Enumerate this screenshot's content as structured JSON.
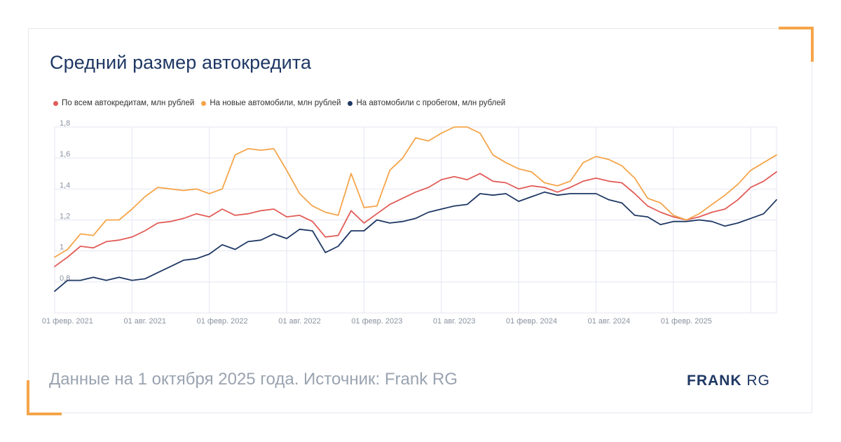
{
  "title": "Средний размер автокредита",
  "footer_note": "Данные на 1 октября 2025 года. Источник: Frank RG",
  "logo": {
    "bold": "FRANK",
    "light": "RG"
  },
  "colors": {
    "all": "#e25c58",
    "new": "#f5a54a",
    "used": "#1f3864",
    "grid": "#e4e6f2",
    "axis_text": "#8a93a0"
  },
  "chart_data": {
    "type": "line",
    "title": "Средний размер автокредита",
    "grid": true,
    "legend_position": "top-left",
    "ylim": [
      0.6,
      1.8
    ],
    "y_ticks": [
      "0,8",
      "1",
      "1,2",
      "1,4",
      "1,6",
      "1,8"
    ],
    "y_tick_values": [
      0.8,
      1.0,
      1.2,
      1.4,
      1.6,
      1.8
    ],
    "x": [
      "2021-01",
      "2021-02",
      "2021-03",
      "2021-04",
      "2021-05",
      "2021-06",
      "2021-07",
      "2021-08",
      "2021-09",
      "2021-10",
      "2021-11",
      "2021-12",
      "2022-01",
      "2022-02",
      "2022-03",
      "2022-04",
      "2022-05",
      "2022-06",
      "2022-07",
      "2022-08",
      "2022-09",
      "2022-10",
      "2022-11",
      "2022-12",
      "2023-01",
      "2023-02",
      "2023-03",
      "2023-04",
      "2023-05",
      "2023-06",
      "2023-07",
      "2023-08",
      "2023-09",
      "2023-10",
      "2023-11",
      "2023-12",
      "2024-01",
      "2024-02",
      "2024-03",
      "2024-04",
      "2024-05",
      "2024-06",
      "2024-07",
      "2024-08",
      "2024-09",
      "2024-10",
      "2024-11",
      "2024-12",
      "2025-01",
      "2025-02",
      "2025-03",
      "2025-04",
      "2025-05",
      "2025-06",
      "2025-07",
      "2025-08",
      "2025-09"
    ],
    "x_ticks": [
      {
        "at": "2021-02",
        "label": "01 февр. 2021"
      },
      {
        "at": "2021-08",
        "label": "01 авг. 2021"
      },
      {
        "at": "2022-02",
        "label": "01 февр. 2022"
      },
      {
        "at": "2022-08",
        "label": "01 авг. 2022"
      },
      {
        "at": "2023-02",
        "label": "01 февр. 2023"
      },
      {
        "at": "2023-08",
        "label": "01 авг. 2023"
      },
      {
        "at": "2024-02",
        "label": "01 февр. 2024"
      },
      {
        "at": "2024-08",
        "label": "01 авг. 2024"
      },
      {
        "at": "2025-02",
        "label": "01 февр. 2025"
      }
    ],
    "series": [
      {
        "name": "По всем автокредитам, млн рублей",
        "color": "#e25c58",
        "values": [
          0.9,
          0.96,
          1.03,
          1.02,
          1.06,
          1.07,
          1.09,
          1.13,
          1.18,
          1.19,
          1.21,
          1.24,
          1.22,
          1.27,
          1.23,
          1.24,
          1.26,
          1.27,
          1.22,
          1.23,
          1.19,
          1.09,
          1.1,
          1.26,
          1.18,
          1.24,
          1.3,
          1.34,
          1.38,
          1.41,
          1.46,
          1.48,
          1.46,
          1.5,
          1.45,
          1.44,
          1.4,
          1.42,
          1.41,
          1.38,
          1.41,
          1.45,
          1.47,
          1.45,
          1.44,
          1.37,
          1.29,
          1.25,
          1.22,
          1.2,
          1.22,
          1.25,
          1.27,
          1.33,
          1.41,
          1.45,
          1.51
        ]
      },
      {
        "name": "На новые автомобили, млн рублей",
        "color": "#f5a54a",
        "values": [
          0.96,
          1.01,
          1.11,
          1.1,
          1.2,
          1.2,
          1.27,
          1.35,
          1.41,
          1.4,
          1.39,
          1.4,
          1.37,
          1.4,
          1.62,
          1.66,
          1.65,
          1.66,
          1.52,
          1.37,
          1.29,
          1.25,
          1.23,
          1.5,
          1.28,
          1.29,
          1.52,
          1.6,
          1.73,
          1.71,
          1.76,
          1.8,
          1.8,
          1.76,
          1.62,
          1.57,
          1.53,
          1.51,
          1.44,
          1.42,
          1.45,
          1.57,
          1.61,
          1.59,
          1.55,
          1.47,
          1.34,
          1.31,
          1.23,
          1.2,
          1.24,
          1.3,
          1.36,
          1.43,
          1.52,
          1.57,
          1.62
        ]
      },
      {
        "name": "На автомобили с пробегом, млн рублей",
        "color": "#1f3864",
        "values": [
          0.74,
          0.81,
          0.81,
          0.83,
          0.81,
          0.83,
          0.81,
          0.82,
          0.86,
          0.9,
          0.94,
          0.95,
          0.98,
          1.04,
          1.01,
          1.06,
          1.07,
          1.11,
          1.08,
          1.14,
          1.13,
          0.99,
          1.03,
          1.13,
          1.13,
          1.2,
          1.18,
          1.19,
          1.21,
          1.25,
          1.27,
          1.29,
          1.3,
          1.37,
          1.36,
          1.37,
          1.32,
          1.35,
          1.38,
          1.36,
          1.37,
          1.37,
          1.37,
          1.33,
          1.31,
          1.23,
          1.22,
          1.17,
          1.19,
          1.19,
          1.2,
          1.19,
          1.16,
          1.18,
          1.21,
          1.24,
          1.33
        ]
      }
    ]
  }
}
